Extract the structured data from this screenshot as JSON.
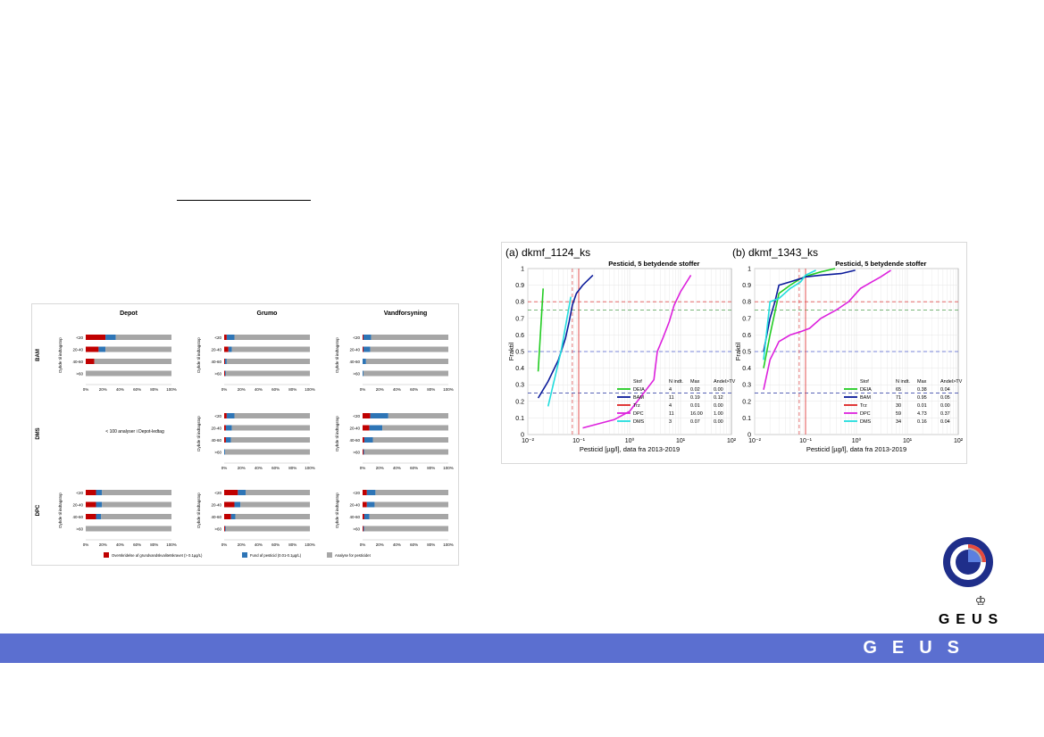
{
  "left_figure": {
    "columns": [
      "Depot",
      "Grumo",
      "Vandforsyning"
    ],
    "rows": [
      "BAM",
      "DMS",
      "DPC"
    ],
    "depth_axis_label": "Dybde til indtagstop",
    "depth_bins": [
      "<20",
      "20-40",
      "40-60",
      ">60"
    ],
    "x_ticks": [
      "0%",
      "20%",
      "40%",
      "60%",
      "80%",
      "100%"
    ],
    "no_data_note": "< 100 analyser i Depot-ledtag",
    "legend": [
      {
        "label": "Overskridelse af grundvandskvalitetskravet (> 0.1µg/L)",
        "color": "#c00000"
      },
      {
        "label": "Fund af pesticid (0.01-0.1µg/L)",
        "color": "#2e75b6"
      },
      {
        "label": "Analyse for pesticidet",
        "color": "#a6a6a6"
      }
    ]
  },
  "chart_data": [
    {
      "type": "bar",
      "stacked": true,
      "orientation": "horizontal",
      "categories": [
        "<20",
        "20-40",
        "40-60",
        ">60"
      ],
      "xlim": [
        0,
        100
      ],
      "panels": [
        {
          "row": "BAM",
          "column": "Depot",
          "series": [
            {
              "name": "Overskridelse af grundvandskvalitetskravet (> 0.1µg/L)",
              "values": [
                23,
                15,
                10,
                0
              ]
            },
            {
              "name": "Fund af pesticid (0.01-0.1µg/L)",
              "values": [
                12,
                8,
                0,
                0
              ]
            },
            {
              "name": "Analyse for pesticidet",
              "values": [
                65,
                77,
                90,
                100
              ]
            }
          ]
        },
        {
          "row": "BAM",
          "column": "Grumo",
          "series": [
            {
              "name": "Overskridelse af grundvandskvalitetskravet (> 0.1µg/L)",
              "values": [
                3,
                5,
                1,
                1
              ]
            },
            {
              "name": "Fund af pesticid (0.01-0.1µg/L)",
              "values": [
                9,
                4,
                2,
                1
              ]
            },
            {
              "name": "Analyse for pesticidet",
              "values": [
                88,
                91,
                97,
                98
              ]
            }
          ]
        },
        {
          "row": "BAM",
          "column": "Vandforsyning",
          "series": [
            {
              "name": "Overskridelse af grundvandskvalitetskravet (> 0.1µg/L)",
              "values": [
                1,
                1,
                0,
                0
              ]
            },
            {
              "name": "Fund af pesticid (0.01-0.1µg/L)",
              "values": [
                9,
                8,
                4,
                1
              ]
            },
            {
              "name": "Analyse for pesticidet",
              "values": [
                90,
                91,
                96,
                99
              ]
            }
          ]
        },
        {
          "row": "DMS",
          "column": "Grumo",
          "series": [
            {
              "name": "Overskridelse af grundvandskvalitetskravet (> 0.1µg/L)",
              "values": [
                3,
                2,
                2,
                0
              ]
            },
            {
              "name": "Fund af pesticid (0.01-0.1µg/L)",
              "values": [
                9,
                7,
                6,
                1
              ]
            },
            {
              "name": "Analyse for pesticidet",
              "values": [
                88,
                91,
                92,
                99
              ]
            }
          ]
        },
        {
          "row": "DMS",
          "column": "Vandforsyning",
          "series": [
            {
              "name": "Overskridelse af grundvandskvalitetskravet (> 0.1µg/L)",
              "values": [
                9,
                8,
                2,
                1
              ]
            },
            {
              "name": "Fund af pesticid (0.01-0.1µg/L)",
              "values": [
                21,
                15,
                10,
                1
              ]
            },
            {
              "name": "Analyse for pesticidet",
              "values": [
                70,
                77,
                88,
                98
              ]
            }
          ]
        },
        {
          "row": "DPC",
          "column": "Depot",
          "series": [
            {
              "name": "Overskridelse af grundvandskvalitetskravet (> 0.1µg/L)",
              "values": [
                12,
                12,
                12,
                0
              ]
            },
            {
              "name": "Fund af pesticid (0.01-0.1µg/L)",
              "values": [
                7,
                7,
                6,
                0
              ]
            },
            {
              "name": "Analyse for pesticidet",
              "values": [
                81,
                81,
                82,
                100
              ]
            }
          ]
        },
        {
          "row": "DPC",
          "column": "Grumo",
          "series": [
            {
              "name": "Overskridelse af grundvandskvalitetskravet (> 0.1µg/L)",
              "values": [
                16,
                12,
                8,
                1
              ]
            },
            {
              "name": "Fund af pesticid (0.01-0.1µg/L)",
              "values": [
                9,
                7,
                5,
                1
              ]
            },
            {
              "name": "Analyse for pesticidet",
              "values": [
                75,
                81,
                87,
                98
              ]
            }
          ]
        },
        {
          "row": "DPC",
          "column": "Vandforsyning",
          "series": [
            {
              "name": "Overskridelse af grundvandskvalitetskravet (> 0.1µg/L)",
              "values": [
                5,
                5,
                2,
                1
              ]
            },
            {
              "name": "Fund af pesticid (0.01-0.1µg/L)",
              "values": [
                10,
                9,
                6,
                1
              ]
            },
            {
              "name": "Analyse for pesticidet",
              "values": [
                85,
                86,
                92,
                98
              ]
            }
          ]
        }
      ]
    },
    {
      "type": "line",
      "panel_label": "(a) dkmf_1124_ks",
      "title": "Pesticid, 5 betydende stoffer",
      "xlabel": "Pesticid [µg/l], data fra 2013-2019",
      "ylabel": "Fraktil",
      "xscale": "log",
      "xlim": [
        0.01,
        100
      ],
      "ylim": [
        0,
        1
      ],
      "x_ticks": [
        "10⁻²",
        "10⁻¹",
        "10⁰",
        "10¹",
        "10²"
      ],
      "y_ticks": [
        "0",
        "0.1",
        "0.2",
        "0.3",
        "0.4",
        "0.5",
        "0.6",
        "0.7",
        "0.8",
        "0.9",
        "1"
      ],
      "table_headers": [
        "Stof",
        "N indt.",
        "Max",
        "Andel>TV"
      ],
      "series": [
        {
          "name": "DEIA",
          "color": "#22cc22",
          "n": "4",
          "max": "0.02",
          "andel": "0.00",
          "x": [
            0.016,
            0.02
          ],
          "y": [
            0.38,
            0.88
          ]
        },
        {
          "name": "BAM",
          "color": "#0a1a9a",
          "n": "11",
          "max": "0.19",
          "andel": "0.12",
          "x": [
            0.016,
            0.025,
            0.04,
            0.055,
            0.065,
            0.075,
            0.09,
            0.12,
            0.19
          ],
          "y": [
            0.22,
            0.32,
            0.45,
            0.58,
            0.68,
            0.78,
            0.85,
            0.9,
            0.96
          ]
        },
        {
          "name": "Trz",
          "color": "#dd2222",
          "n": "4",
          "max": "0.01",
          "andel": "0.00",
          "x": [],
          "y": []
        },
        {
          "name": "DPC",
          "color": "#dd22dd",
          "n": "11",
          "max": "16.00",
          "andel": "1.00",
          "x": [
            0.12,
            0.5,
            1.0,
            3.0,
            3.5,
            4.5,
            6.0,
            7.5,
            10,
            16
          ],
          "y": [
            0.04,
            0.09,
            0.14,
            0.33,
            0.5,
            0.58,
            0.68,
            0.78,
            0.86,
            0.96
          ]
        },
        {
          "name": "DMS",
          "color": "#22dddd",
          "n": "3",
          "max": "0.07",
          "andel": "0.00",
          "x": [
            0.025,
            0.045,
            0.07
          ],
          "y": [
            0.17,
            0.5,
            0.83
          ]
        }
      ],
      "reference_lines": {
        "h_red": 0.8,
        "h_green": 0.75,
        "h_blue_mid": 0.5,
        "h_blue_low": 0.25,
        "v_red_dashed": 0.075,
        "v_red_solid": 0.1
      }
    },
    {
      "type": "line",
      "panel_label": "(b) dkmf_1343_ks",
      "title": "Pesticid, 5 betydende stoffer",
      "xlabel": "Pesticid [µg/l], data fra 2013-2019",
      "ylabel": "Fraktil",
      "xscale": "log",
      "xlim": [
        0.01,
        100
      ],
      "ylim": [
        0,
        1
      ],
      "x_ticks": [
        "10⁻²",
        "10⁻¹",
        "10⁰",
        "10¹",
        "10²"
      ],
      "y_ticks": [
        "0",
        "0.1",
        "0.2",
        "0.3",
        "0.4",
        "0.5",
        "0.6",
        "0.7",
        "0.8",
        "0.9",
        "1"
      ],
      "table_headers": [
        "Stof",
        "N indt.",
        "Max",
        "Andel>TV"
      ],
      "series": [
        {
          "name": "DEIA",
          "color": "#22cc22",
          "n": "65",
          "max": "0.38",
          "andel": "0.04",
          "x": [
            0.015,
            0.02,
            0.03,
            0.05,
            0.08,
            0.12,
            0.2,
            0.38
          ],
          "y": [
            0.4,
            0.6,
            0.85,
            0.9,
            0.94,
            0.96,
            0.98,
            1.0
          ]
        },
        {
          "name": "BAM",
          "color": "#0a1a9a",
          "n": "71",
          "max": "0.95",
          "andel": "0.05",
          "x": [
            0.015,
            0.02,
            0.025,
            0.03,
            0.05,
            0.08,
            0.1,
            0.2,
            0.5,
            0.95
          ],
          "y": [
            0.5,
            0.7,
            0.8,
            0.9,
            0.92,
            0.94,
            0.95,
            0.96,
            0.97,
            0.99
          ]
        },
        {
          "name": "Trz",
          "color": "#dd2222",
          "n": "30",
          "max": "0.01",
          "andel": "0.00",
          "x": [],
          "y": []
        },
        {
          "name": "DPC",
          "color": "#dd22dd",
          "n": "59",
          "max": "4.73",
          "andel": "0.37",
          "x": [
            0.015,
            0.02,
            0.03,
            0.05,
            0.08,
            0.12,
            0.2,
            0.4,
            0.7,
            1.2,
            2.0,
            3.0,
            4.73
          ],
          "y": [
            0.27,
            0.45,
            0.56,
            0.6,
            0.62,
            0.64,
            0.7,
            0.75,
            0.8,
            0.88,
            0.92,
            0.95,
            0.99
          ]
        },
        {
          "name": "DMS",
          "color": "#22dddd",
          "n": "34",
          "max": "0.16",
          "andel": "0.04",
          "x": [
            0.015,
            0.02,
            0.03,
            0.05,
            0.08,
            0.1,
            0.16
          ],
          "y": [
            0.45,
            0.8,
            0.82,
            0.88,
            0.92,
            0.96,
            0.99
          ]
        }
      ],
      "reference_lines": {
        "h_red": 0.8,
        "h_green": 0.75,
        "h_blue_mid": 0.5,
        "h_blue_low": 0.25,
        "v_red_dashed": 0.075,
        "v_red_solid": 0.1
      }
    }
  ],
  "footer": {
    "text": "GEUS"
  },
  "logo": {
    "text": "GEUS"
  }
}
